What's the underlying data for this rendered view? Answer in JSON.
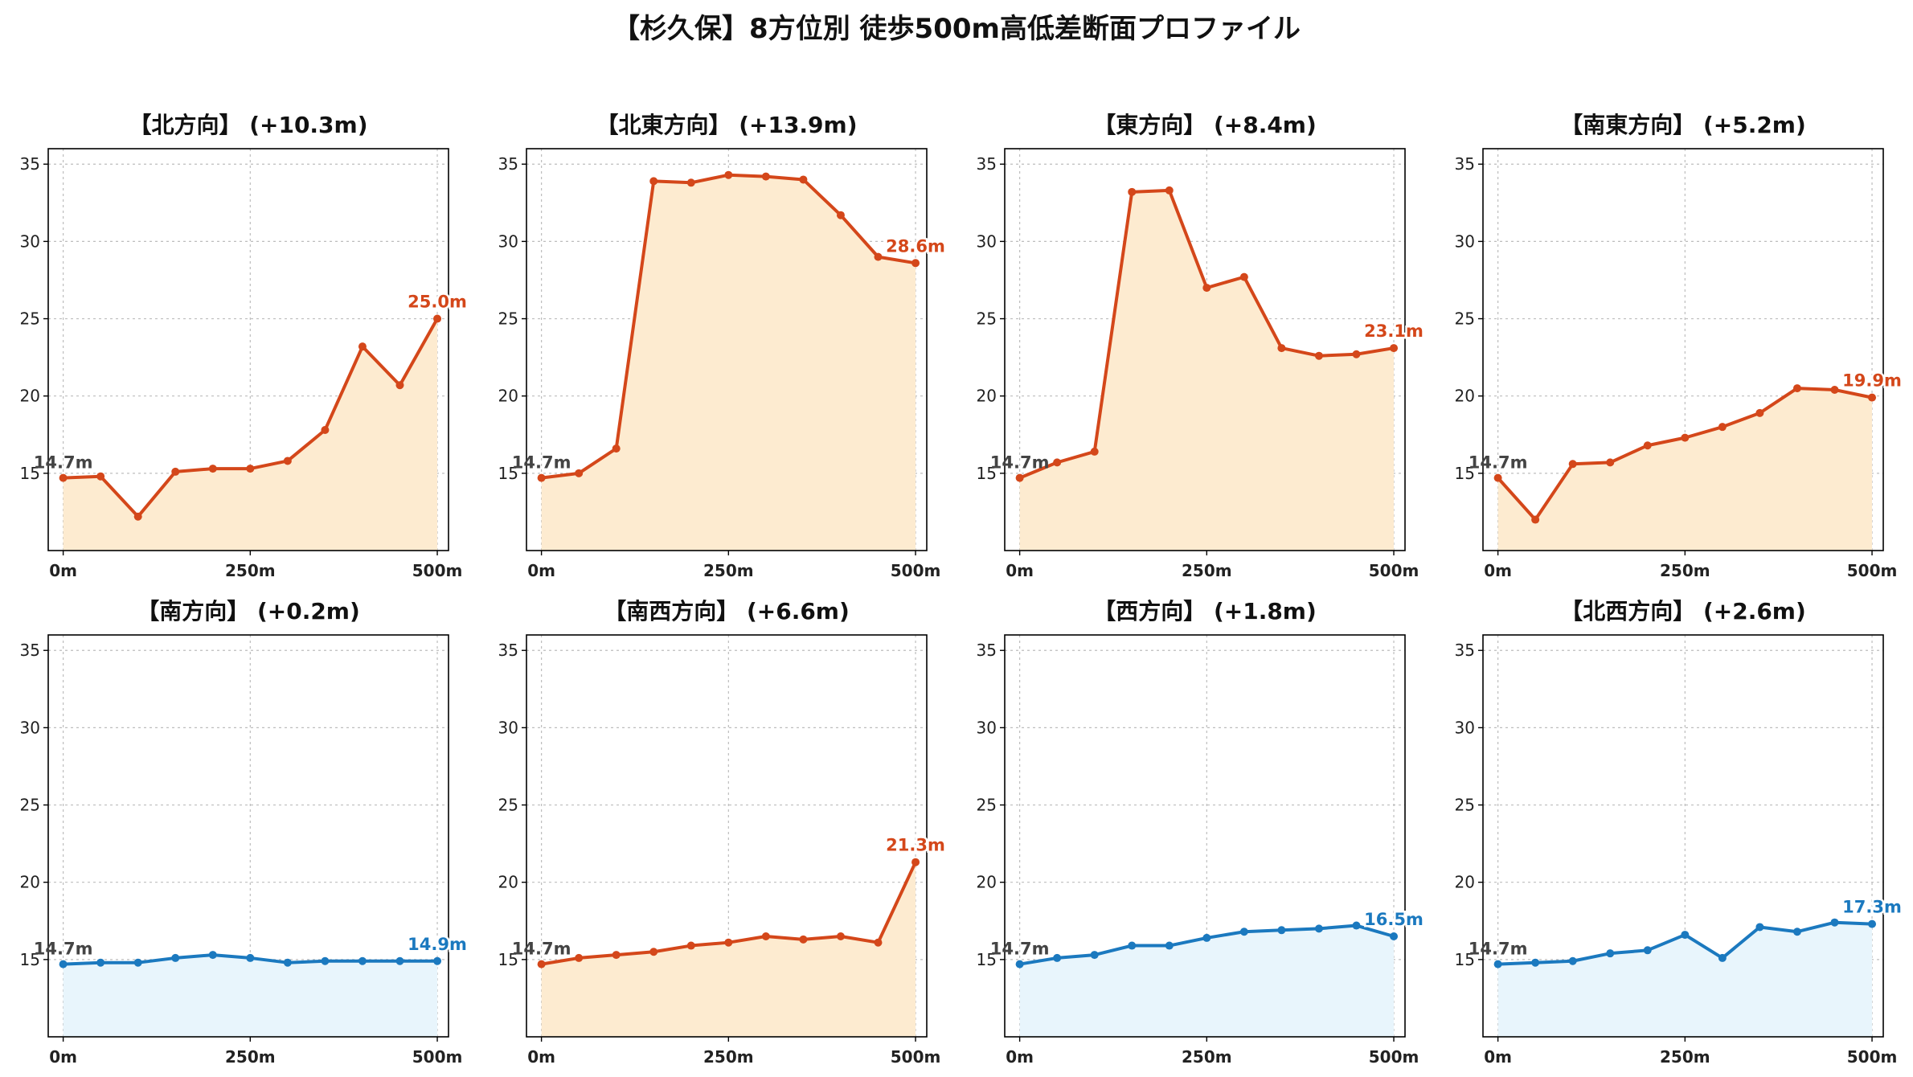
{
  "title": "【杉久保】8方位別 徒歩500m高低差断面プロファイル",
  "colors": {
    "up_line": "#d4471a",
    "up_fill": "#fdebd0",
    "flat_line": "#1b79bf",
    "flat_fill": "#e8f5fc",
    "grid": "#bdbdbd",
    "axis": "#000000"
  },
  "chart_data": [
    {
      "type": "area",
      "title": "【北方向】 (+10.3m)",
      "x_tick_labels": [
        "0m",
        "250m",
        "500m"
      ],
      "x": [
        0,
        50,
        100,
        150,
        200,
        250,
        300,
        350,
        400,
        450,
        500
      ],
      "y": [
        14.7,
        14.8,
        12.2,
        15.1,
        15.3,
        15.3,
        15.8,
        17.8,
        23.2,
        20.7,
        25.0
      ],
      "start_label": "14.7m",
      "end_label": "25.0m",
      "trend": "up",
      "ylim": [
        10,
        36
      ],
      "yticks": [
        15,
        20,
        25,
        30,
        35
      ]
    },
    {
      "type": "area",
      "title": "【北東方向】 (+13.9m)",
      "x_tick_labels": [
        "0m",
        "250m",
        "500m"
      ],
      "x": [
        0,
        50,
        100,
        150,
        200,
        250,
        300,
        350,
        400,
        450,
        500
      ],
      "y": [
        14.7,
        15.0,
        16.6,
        33.9,
        33.8,
        34.3,
        34.2,
        34.0,
        31.7,
        29.0,
        28.6
      ],
      "start_label": "14.7m",
      "end_label": "28.6m",
      "trend": "up",
      "ylim": [
        10,
        36
      ],
      "yticks": [
        15,
        20,
        25,
        30,
        35
      ]
    },
    {
      "type": "area",
      "title": "【東方向】 (+8.4m)",
      "x_tick_labels": [
        "0m",
        "250m",
        "500m"
      ],
      "x": [
        0,
        50,
        100,
        150,
        200,
        250,
        300,
        350,
        400,
        450,
        500
      ],
      "y": [
        14.7,
        15.7,
        16.4,
        33.2,
        33.3,
        27.0,
        27.7,
        23.1,
        22.6,
        22.7,
        23.1
      ],
      "start_label": "14.7m",
      "end_label": "23.1m",
      "trend": "up",
      "ylim": [
        10,
        36
      ],
      "yticks": [
        15,
        20,
        25,
        30,
        35
      ]
    },
    {
      "type": "area",
      "title": "【南東方向】 (+5.2m)",
      "x_tick_labels": [
        "0m",
        "250m",
        "500m"
      ],
      "x": [
        0,
        50,
        100,
        150,
        200,
        250,
        300,
        350,
        400,
        450,
        500
      ],
      "y": [
        14.7,
        12.0,
        15.6,
        15.7,
        16.8,
        17.3,
        18.0,
        18.9,
        20.5,
        20.4,
        19.9
      ],
      "start_label": "14.7m",
      "end_label": "19.9m",
      "trend": "up",
      "ylim": [
        10,
        36
      ],
      "yticks": [
        15,
        20,
        25,
        30,
        35
      ]
    },
    {
      "type": "area",
      "title": "【南方向】 (+0.2m)",
      "x_tick_labels": [
        "0m",
        "250m",
        "500m"
      ],
      "x": [
        0,
        50,
        100,
        150,
        200,
        250,
        300,
        350,
        400,
        450,
        500
      ],
      "y": [
        14.7,
        14.8,
        14.8,
        15.1,
        15.3,
        15.1,
        14.8,
        14.9,
        14.9,
        14.9,
        14.9
      ],
      "start_label": "14.7m",
      "end_label": "14.9m",
      "trend": "flat",
      "ylim": [
        10,
        36
      ],
      "yticks": [
        15,
        20,
        25,
        30,
        35
      ]
    },
    {
      "type": "area",
      "title": "【南西方向】 (+6.6m)",
      "x_tick_labels": [
        "0m",
        "250m",
        "500m"
      ],
      "x": [
        0,
        50,
        100,
        150,
        200,
        250,
        300,
        350,
        400,
        450,
        500
      ],
      "y": [
        14.7,
        15.1,
        15.3,
        15.5,
        15.9,
        16.1,
        16.5,
        16.3,
        16.5,
        16.1,
        21.3
      ],
      "start_label": "14.7m",
      "end_label": "21.3m",
      "trend": "up",
      "ylim": [
        10,
        36
      ],
      "yticks": [
        15,
        20,
        25,
        30,
        35
      ]
    },
    {
      "type": "area",
      "title": "【西方向】 (+1.8m)",
      "x_tick_labels": [
        "0m",
        "250m",
        "500m"
      ],
      "x": [
        0,
        50,
        100,
        150,
        200,
        250,
        300,
        350,
        400,
        450,
        500
      ],
      "y": [
        14.7,
        15.1,
        15.3,
        15.9,
        15.9,
        16.4,
        16.8,
        16.9,
        17.0,
        17.2,
        16.5
      ],
      "start_label": "14.7m",
      "end_label": "16.5m",
      "trend": "flat",
      "ylim": [
        10,
        36
      ],
      "yticks": [
        15,
        20,
        25,
        30,
        35
      ]
    },
    {
      "type": "area",
      "title": "【北西方向】 (+2.6m)",
      "x_tick_labels": [
        "0m",
        "250m",
        "500m"
      ],
      "x": [
        0,
        50,
        100,
        150,
        200,
        250,
        300,
        350,
        400,
        450,
        500
      ],
      "y": [
        14.7,
        14.8,
        14.9,
        15.4,
        15.6,
        16.6,
        15.1,
        17.1,
        16.8,
        17.4,
        17.3
      ],
      "start_label": "14.7m",
      "end_label": "17.3m",
      "trend": "flat",
      "ylim": [
        10,
        36
      ],
      "yticks": [
        15,
        20,
        25,
        30,
        35
      ]
    }
  ]
}
